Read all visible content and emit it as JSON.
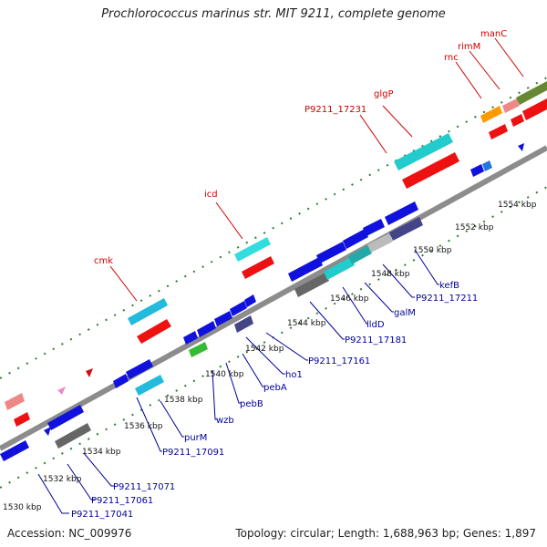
{
  "title": "Prochlorococcus marinus str. MIT 9211, complete genome",
  "accession_label": "Accession: NC_009976",
  "summary_label": "Topology: circular; Length: 1,688,963 bp; Genes: 1,897",
  "colors": {
    "backbone": "#8c8c8c",
    "tick": "#2e7d32",
    "top_label": "#cc0000",
    "bottom_label": "#000099"
  },
  "kbp_labels": [
    "1530 kbp",
    "1532 kbp",
    "1534 kbp",
    "1536 kbp",
    "1538 kbp",
    "1540 kbp",
    "1542 kbp",
    "1544 kbp",
    "1546 kbp",
    "1548 kbp",
    "1550 kbp",
    "1552 kbp",
    "1554 kbp"
  ],
  "top_gene_labels": [
    "cmk",
    "icd",
    "P9211_17231",
    "glgP",
    "rnc",
    "rimM",
    "manC"
  ],
  "bottom_gene_labels": [
    "P9211_17041",
    "P9211_17061",
    "P9211_17071",
    "P9211_17091",
    "purM",
    "wzb",
    "pebB",
    "pebA",
    "ho1",
    "P9211_17161",
    "P9211_17181",
    "lldD",
    "galM",
    "P9211_17211",
    "kefB"
  ]
}
